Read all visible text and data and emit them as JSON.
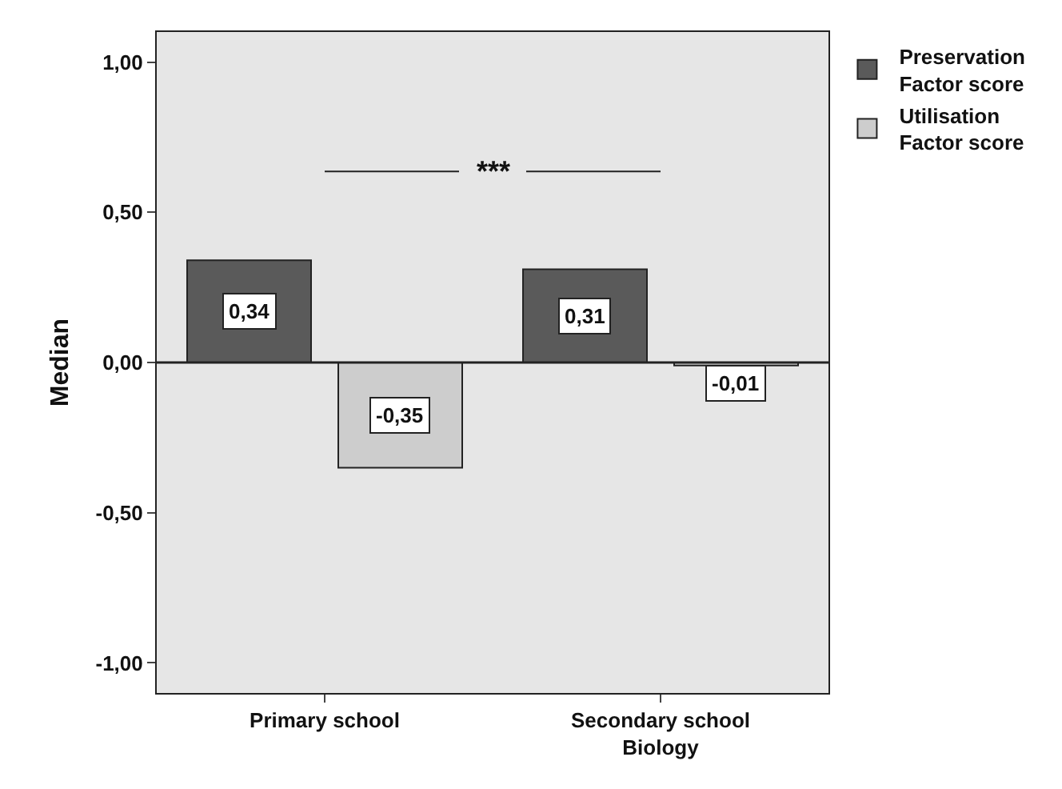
{
  "chart_data": {
    "type": "bar",
    "ylabel": "Median",
    "categories": [
      "Primary school",
      "Secondary school Biology"
    ],
    "series": [
      {
        "name": "Preservation Factor score",
        "color": "#5a5a5a",
        "values": [
          0.34,
          0.31
        ],
        "value_labels": [
          "0,34",
          "0,31"
        ]
      },
      {
        "name": "Utilisation Factor score",
        "color": "#cdcdcd",
        "values": [
          -0.35,
          -0.01
        ],
        "value_labels": [
          "-0,35",
          "-0,01"
        ]
      }
    ],
    "ylim": [
      -1.1,
      1.1
    ],
    "yticks": [
      {
        "value": -1,
        "label": "-1,00"
      },
      {
        "value": -0.5,
        "label": "-0,50"
      },
      {
        "value": 0,
        "label": "0,00"
      },
      {
        "value": 0.5,
        "label": "0,50"
      },
      {
        "value": 1,
        "label": "1,00"
      }
    ],
    "grid": false,
    "ref_lines": [
      {
        "axis": "y",
        "value": 0,
        "color": "#222222"
      }
    ],
    "legend": "top right",
    "annotations": [
      "***"
    ]
  }
}
